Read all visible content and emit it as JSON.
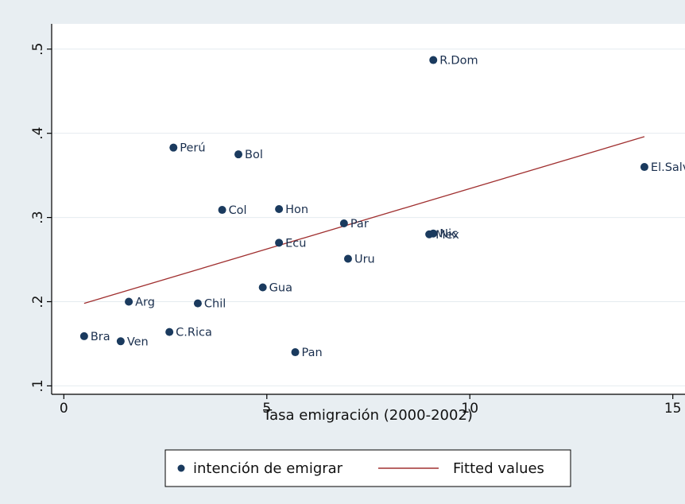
{
  "chart_data": {
    "type": "scatter",
    "title": "",
    "xlabel": "Tasa emigración (2000-2002)",
    "ylabel": "",
    "xlim": [
      -0.3,
      15.3
    ],
    "ylim": [
      0.09,
      0.53
    ],
    "x_ticks": [
      0,
      5,
      10,
      15
    ],
    "x_tick_labels": [
      "0",
      "5",
      "10",
      "15"
    ],
    "y_ticks": [
      0.1,
      0.2,
      0.3,
      0.4,
      0.5
    ],
    "y_tick_labels": [
      ".1",
      ".2",
      ".3",
      ".4",
      ".5"
    ],
    "grid": true,
    "legend_placement": "bottom",
    "colors": {
      "background": "#e8eef2",
      "plot_background": "#ffffff",
      "grid": "#e4ebef",
      "marker": "#1a3a5e",
      "fit_line": "#a03030"
    },
    "series": [
      {
        "name": "intención de emigrar",
        "kind": "scatter",
        "points": [
          {
            "label": "R.Dom",
            "x": 9.1,
            "y": 0.487
          },
          {
            "label": "Perú",
            "x": 2.7,
            "y": 0.383
          },
          {
            "label": "Bol",
            "x": 4.3,
            "y": 0.375
          },
          {
            "label": "El.Salv",
            "x": 14.3,
            "y": 0.36
          },
          {
            "label": "Col",
            "x": 3.9,
            "y": 0.309
          },
          {
            "label": "Hon",
            "x": 5.3,
            "y": 0.31
          },
          {
            "label": "Par",
            "x": 6.9,
            "y": 0.293
          },
          {
            "label": "Nic",
            "x": 9.1,
            "y": 0.281
          },
          {
            "label": "Mex",
            "x": 9.0,
            "y": 0.28
          },
          {
            "label": "Ecu",
            "x": 5.3,
            "y": 0.27
          },
          {
            "label": "Uru",
            "x": 7.0,
            "y": 0.251
          },
          {
            "label": "Gua",
            "x": 4.9,
            "y": 0.217
          },
          {
            "label": "Arg",
            "x": 1.6,
            "y": 0.2
          },
          {
            "label": "Chil",
            "x": 3.3,
            "y": 0.198
          },
          {
            "label": "C.Rica",
            "x": 2.6,
            "y": 0.164
          },
          {
            "label": "Bra",
            "x": 0.5,
            "y": 0.159
          },
          {
            "label": "Ven",
            "x": 1.4,
            "y": 0.153
          },
          {
            "label": "Pan",
            "x": 5.7,
            "y": 0.14
          }
        ]
      },
      {
        "name": "Fitted values",
        "kind": "line",
        "x": [
          0.5,
          14.3
        ],
        "y": [
          0.198,
          0.396
        ]
      }
    ]
  }
}
